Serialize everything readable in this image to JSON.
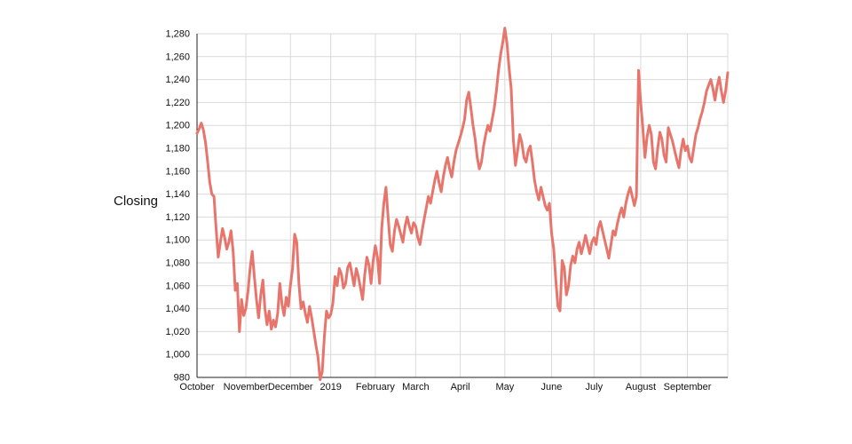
{
  "page": {
    "background": "#ffffff"
  },
  "chart_data": {
    "type": "line",
    "title": "",
    "ylabel": "Closing",
    "xlabel": "",
    "ylim": [
      980,
      1280
    ],
    "grid": true,
    "legend": "none",
    "line_color": "#e8756b",
    "grid_color": "#d9d9d9",
    "axis_color": "#222222",
    "tick_label_color": "#111111",
    "y_ticks": [
      {
        "value": 980,
        "label": "980"
      },
      {
        "value": 1000,
        "label": "1,000"
      },
      {
        "value": 1020,
        "label": "1,020"
      },
      {
        "value": 1040,
        "label": "1,040"
      },
      {
        "value": 1060,
        "label": "1,060"
      },
      {
        "value": 1080,
        "label": "1,080"
      },
      {
        "value": 1100,
        "label": "1,100"
      },
      {
        "value": 1120,
        "label": "1,120"
      },
      {
        "value": 1140,
        "label": "1,140"
      },
      {
        "value": 1160,
        "label": "1,160"
      },
      {
        "value": 1180,
        "label": "1,180"
      },
      {
        "value": 1200,
        "label": "1,200"
      },
      {
        "value": 1220,
        "label": "1,220"
      },
      {
        "value": 1240,
        "label": "1,240"
      },
      {
        "value": 1260,
        "label": "1,260"
      },
      {
        "value": 1280,
        "label": "1,280"
      }
    ],
    "x_ticks": [
      {
        "label": "October",
        "index": 0
      },
      {
        "label": "November",
        "index": 23
      },
      {
        "label": "December",
        "index": 44
      },
      {
        "label": "2019",
        "index": 63
      },
      {
        "label": "February",
        "index": 84
      },
      {
        "label": "March",
        "index": 103
      },
      {
        "label": "April",
        "index": 124
      },
      {
        "label": "May",
        "index": 145
      },
      {
        "label": "June",
        "index": 167
      },
      {
        "label": "July",
        "index": 187
      },
      {
        "label": "August",
        "index": 209
      },
      {
        "label": "September",
        "index": 231
      }
    ],
    "values": [
      1193,
      1197,
      1202,
      1196,
      1185,
      1168,
      1150,
      1140,
      1138,
      1110,
      1085,
      1098,
      1110,
      1102,
      1092,
      1098,
      1108,
      1090,
      1056,
      1062,
      1020,
      1048,
      1034,
      1040,
      1055,
      1075,
      1090,
      1068,
      1048,
      1032,
      1052,
      1065,
      1040,
      1026,
      1038,
      1022,
      1030,
      1024,
      1036,
      1062,
      1044,
      1034,
      1050,
      1042,
      1060,
      1075,
      1105,
      1098,
      1062,
      1040,
      1046,
      1036,
      1028,
      1042,
      1032,
      1020,
      1008,
      998,
      978,
      985,
      1016,
      1038,
      1032,
      1035,
      1045,
      1068,
      1060,
      1075,
      1070,
      1058,
      1062,
      1076,
      1080,
      1070,
      1060,
      1075,
      1068,
      1058,
      1048,
      1070,
      1085,
      1078,
      1062,
      1082,
      1095,
      1085,
      1062,
      1110,
      1132,
      1146,
      1120,
      1096,
      1090,
      1108,
      1118,
      1112,
      1105,
      1098,
      1112,
      1120,
      1112,
      1106,
      1115,
      1112,
      1102,
      1096,
      1108,
      1118,
      1128,
      1138,
      1132,
      1142,
      1152,
      1160,
      1150,
      1142,
      1155,
      1165,
      1172,
      1162,
      1155,
      1168,
      1178,
      1184,
      1190,
      1197,
      1205,
      1222,
      1229,
      1215,
      1200,
      1188,
      1172,
      1162,
      1168,
      1182,
      1192,
      1200,
      1195,
      1205,
      1215,
      1230,
      1248,
      1262,
      1272,
      1285,
      1272,
      1250,
      1232,
      1188,
      1165,
      1178,
      1192,
      1185,
      1172,
      1168,
      1178,
      1182,
      1168,
      1152,
      1142,
      1135,
      1146,
      1138,
      1130,
      1126,
      1132,
      1106,
      1092,
      1066,
      1042,
      1038,
      1082,
      1076,
      1052,
      1060,
      1078,
      1086,
      1080,
      1092,
      1098,
      1088,
      1095,
      1104,
      1096,
      1088,
      1098,
      1102,
      1096,
      1110,
      1116,
      1108,
      1100,
      1092,
      1084,
      1096,
      1108,
      1104,
      1114,
      1122,
      1128,
      1120,
      1132,
      1140,
      1146,
      1138,
      1130,
      1138,
      1248,
      1220,
      1198,
      1172,
      1190,
      1200,
      1192,
      1168,
      1162,
      1180,
      1194,
      1188,
      1174,
      1168,
      1198,
      1192,
      1186,
      1178,
      1170,
      1163,
      1178,
      1188,
      1178,
      1182,
      1172,
      1168,
      1180,
      1192,
      1198,
      1206,
      1212,
      1220,
      1230,
      1235,
      1240,
      1232,
      1222,
      1234,
      1242,
      1230,
      1220,
      1230,
      1246
    ]
  }
}
